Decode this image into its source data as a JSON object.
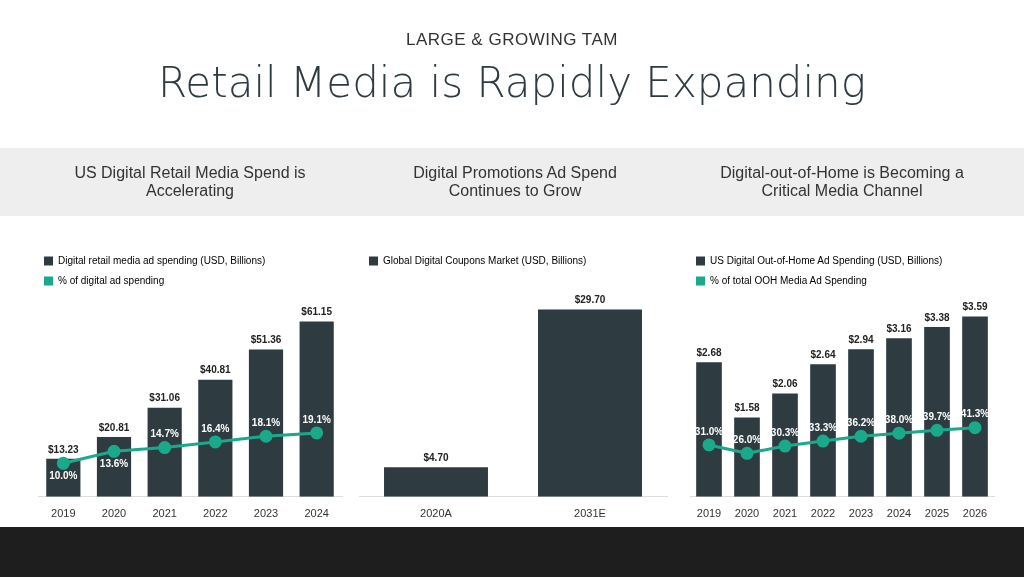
{
  "chart_data": [
    {
      "type": "other",
      "title": "Retail Media is Rapidly Expanding",
      "subtitle": "LARGE & GROWING TAM"
    },
    {
      "type": "bar",
      "title": "US Digital Retail Media Spend is Accelerating",
      "categories": [
        "2019",
        "2020",
        "2021",
        "2022",
        "2023",
        "2024"
      ],
      "series": [
        {
          "type": "bar",
          "name": "Digital retail media ad spending (USD, Billions)",
          "color": "#2e3b40",
          "values": [
            13.23,
            20.81,
            31.06,
            40.81,
            51.36,
            61.15
          ],
          "value_labels": [
            "$13.23",
            "$20.81",
            "$31.06",
            "$40.81",
            "$51.36",
            "$61.15"
          ]
        },
        {
          "type": "line",
          "name": "% of digital ad spending",
          "color": "#1ba98b",
          "axis": "y2",
          "values": [
            10.0,
            13.6,
            14.7,
            16.4,
            18.1,
            19.1
          ],
          "value_labels": [
            "10.0%",
            "13.6%",
            "14.7%",
            "16.4%",
            "18.1%",
            "19.1%"
          ]
        }
      ],
      "tick_labels": "x",
      "legend": "top left",
      "marker": "circle"
    },
    {
      "type": "bar",
      "title": "Digital Promotions Ad Spend Continues to Grow",
      "categories": [
        "2020A",
        "2031E"
      ],
      "series": [
        {
          "type": "bar",
          "name": "Global Digital Coupons Market (USD, Billions)",
          "color": "#2e3b40",
          "values": [
            4.7,
            29.7
          ],
          "value_labels": [
            "$4.70",
            "$29.70"
          ]
        }
      ],
      "tick_labels": "x",
      "legend": "top left"
    },
    {
      "type": "bar",
      "title": "Digital-out-of-Home is Becoming a Critical Media Channel",
      "categories": [
        "2019",
        "2020",
        "2021",
        "2022",
        "2023",
        "2024",
        "2025",
        "2026"
      ],
      "series": [
        {
          "type": "bar",
          "name": "US Digital Out-of-Home Ad Spending (USD, Billions)",
          "color": "#2e3b40",
          "values": [
            2.68,
            1.58,
            2.06,
            2.64,
            2.94,
            3.16,
            3.38,
            3.59
          ],
          "value_labels": [
            "$2.68",
            "$1.58",
            "$2.06",
            "$2.64",
            "$2.94",
            "$3.16",
            "$3.38",
            "$3.59"
          ]
        },
        {
          "type": "line",
          "name": "% of total OOH Media Ad Spending",
          "color": "#1ba98b",
          "axis": "y2",
          "values": [
            31.0,
            26.0,
            30.3,
            33.3,
            36.2,
            38.0,
            39.7,
            41.3
          ],
          "value_labels": [
            "31.0%",
            "26.0%",
            "30.3%",
            "33.3%",
            "36.2%",
            "38.0%",
            "39.7%",
            "41.3%"
          ]
        }
      ],
      "tick_labels": "x",
      "legend": "top left",
      "marker": "circle"
    }
  ]
}
